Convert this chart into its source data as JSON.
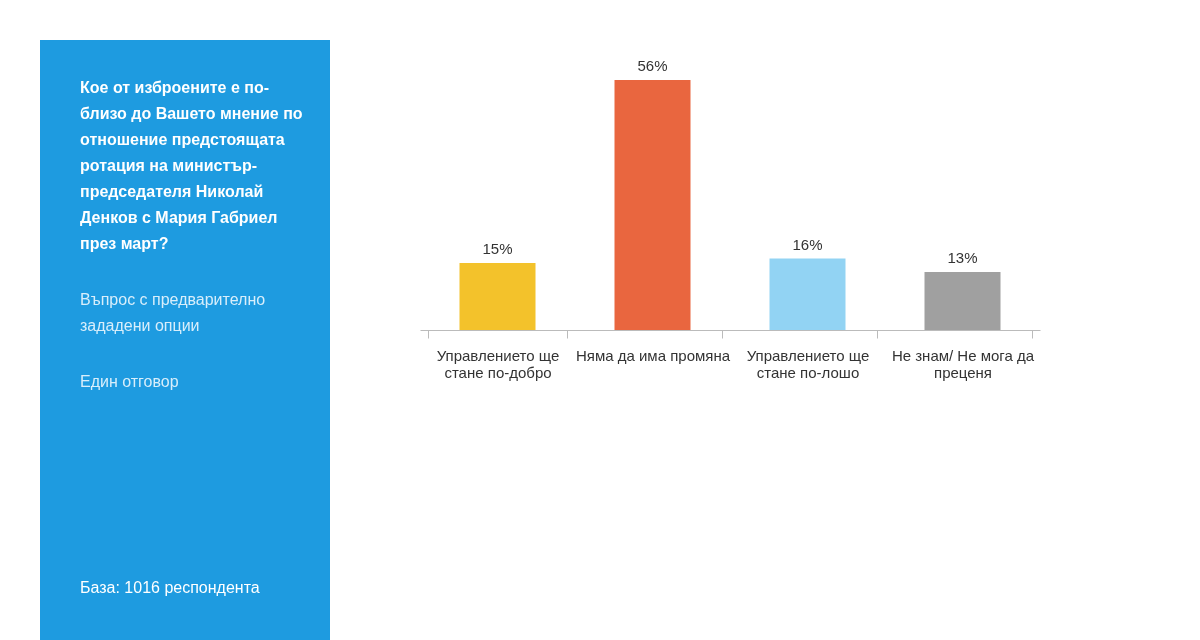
{
  "chart_data": {
    "type": "bar",
    "title": "Кое от изброените е по-близо до Вашето мнение по отношение  предстоящата ротация на министър-председателя Николай Денков с Мария Габриел през март?",
    "subtitle": "Въпрос с предварително зададени опции",
    "annotations": [
      "Един отговор",
      "База:  1016 респондента"
    ],
    "categories": [
      "Управлението ще стане по-добро",
      "Няма да има промяна",
      "Управлението ще стане по-лошо",
      "Не знам/ Не мога да преценя"
    ],
    "values": [
      15,
      56,
      16,
      13
    ],
    "colors": [
      "#f3c22b",
      "#e9663f",
      "#92d3f3",
      "#a0a0a0"
    ],
    "value_labels": [
      "15%",
      "56%",
      "16%",
      "13%"
    ]
  }
}
